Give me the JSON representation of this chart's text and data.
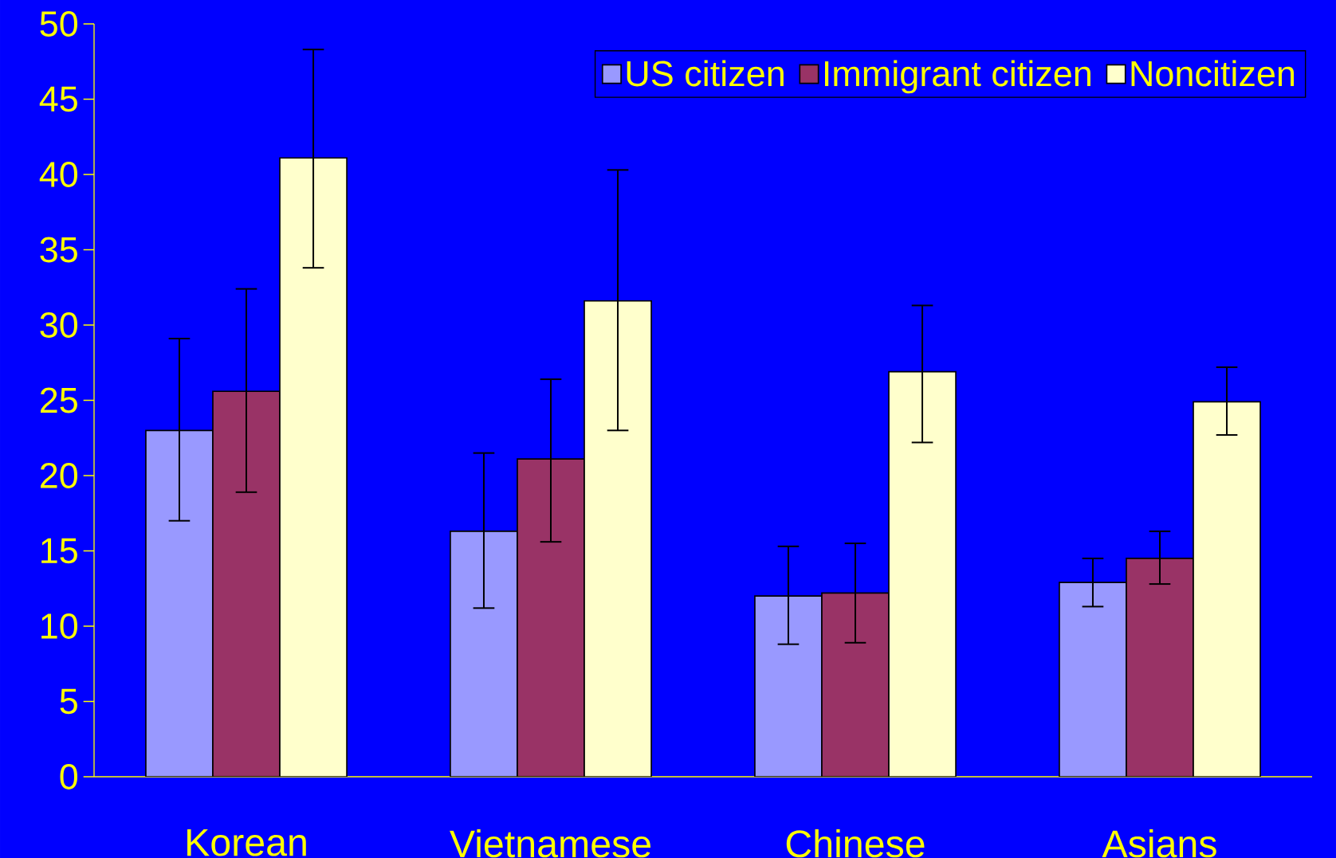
{
  "chart_data": {
    "type": "bar",
    "categories": [
      "Korean",
      "Vietnamese",
      "Chinese",
      "Asians"
    ],
    "series": [
      {
        "name": "US citizen",
        "color": "#9999ff",
        "values": [
          23.0,
          16.3,
          12.0,
          12.9
        ],
        "errors": [
          [
            17.0,
            29.1
          ],
          [
            11.2,
            21.5
          ],
          [
            8.8,
            15.3
          ],
          [
            11.3,
            14.5
          ]
        ]
      },
      {
        "name": "Immigrant citizen",
        "color": "#993366",
        "values": [
          25.6,
          21.1,
          12.2,
          14.5
        ],
        "errors": [
          [
            18.9,
            32.4
          ],
          [
            15.6,
            26.4
          ],
          [
            8.9,
            15.5
          ],
          [
            12.8,
            16.3
          ]
        ]
      },
      {
        "name": "Noncitizen",
        "color": "#ffffcc",
        "values": [
          41.1,
          31.6,
          26.9,
          24.9
        ],
        "errors": [
          [
            33.8,
            48.3
          ],
          [
            23.0,
            40.3
          ],
          [
            22.2,
            31.3
          ],
          [
            22.7,
            27.2
          ]
        ]
      }
    ],
    "ylim": [
      0,
      50
    ],
    "yticks": [
      0,
      5,
      10,
      15,
      20,
      25,
      30,
      35,
      40,
      45,
      50
    ],
    "legend": "top right"
  }
}
